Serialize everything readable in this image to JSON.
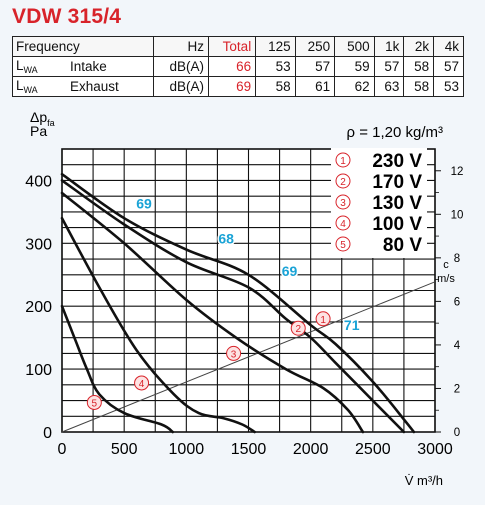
{
  "title": "VDW 315/4",
  "table": {
    "header": [
      "Frequency",
      "Hz",
      "Total",
      "125",
      "250",
      "500",
      "1k",
      "2k",
      "4k"
    ],
    "rows": [
      {
        "label": "L",
        "label_sub": "WA",
        "type": "Intake",
        "unit": "dB(A)",
        "total": "66",
        "values": [
          "53",
          "57",
          "59",
          "57",
          "58",
          "57"
        ]
      },
      {
        "label": "L",
        "label_sub": "WA",
        "type": "Exhaust",
        "unit": "dB(A)",
        "total": "69",
        "values": [
          "58",
          "61",
          "62",
          "63",
          "58",
          "53"
        ]
      }
    ]
  },
  "colors": {
    "accent_red": "#d8232a",
    "cyan": "#1aa3d6",
    "marker_fill": "#fde3e3"
  },
  "chart_data": {
    "type": "line",
    "ylabel": "Δp",
    "ylabel_sub": "fa",
    "yunit": "Pa",
    "xlabel": "V̇ m³/h",
    "density_label": "ρ = 1,20 kg/m³",
    "xlim": [
      0,
      3000
    ],
    "ylim": [
      0,
      450
    ],
    "x_ticks": [
      0,
      500,
      1000,
      1500,
      2000,
      2500,
      3000
    ],
    "y_ticks": [
      0,
      100,
      200,
      300,
      400
    ],
    "grid": true,
    "right_axis": {
      "label": "c",
      "unit": "m/s",
      "ticks": [
        0,
        2,
        4,
        6,
        8,
        10,
        12
      ],
      "lim": [
        0,
        13
      ]
    },
    "velocity_line": {
      "from": [
        0,
        0
      ],
      "to": [
        3000,
        6.9
      ]
    },
    "legend": [
      {
        "num": "1",
        "label": "230 V"
      },
      {
        "num": "2",
        "label": "170 V"
      },
      {
        "num": "3",
        "label": "130 V"
      },
      {
        "num": "4",
        "label": "100 V"
      },
      {
        "num": "5",
        "label": "80 V"
      }
    ],
    "series": [
      {
        "num": "1",
        "points": [
          [
            0,
            410
          ],
          [
            500,
            340
          ],
          [
            1000,
            290
          ],
          [
            1500,
            250
          ],
          [
            2000,
            170
          ],
          [
            2200,
            140
          ],
          [
            2500,
            80
          ],
          [
            2750,
            20
          ],
          [
            2830,
            0
          ]
        ]
      },
      {
        "num": "2",
        "points": [
          [
            0,
            400
          ],
          [
            500,
            330
          ],
          [
            1000,
            270
          ],
          [
            1500,
            230
          ],
          [
            1800,
            180
          ],
          [
            2000,
            150
          ],
          [
            2200,
            110
          ],
          [
            2500,
            50
          ],
          [
            2750,
            0
          ]
        ]
      },
      {
        "num": "3",
        "points": [
          [
            0,
            380
          ],
          [
            500,
            300
          ],
          [
            1000,
            210
          ],
          [
            1400,
            150
          ],
          [
            1800,
            100
          ],
          [
            2100,
            70
          ],
          [
            2300,
            35
          ],
          [
            2420,
            0
          ]
        ]
      },
      {
        "num": "4",
        "points": [
          [
            0,
            340
          ],
          [
            300,
            230
          ],
          [
            600,
            130
          ],
          [
            900,
            60
          ],
          [
            1100,
            30
          ],
          [
            1300,
            22
          ],
          [
            1450,
            12
          ],
          [
            1550,
            0
          ]
        ]
      },
      {
        "num": "5",
        "points": [
          [
            0,
            200
          ],
          [
            100,
            150
          ],
          [
            200,
            100
          ],
          [
            300,
            60
          ],
          [
            500,
            30
          ],
          [
            800,
            12
          ],
          [
            890,
            0
          ]
        ]
      }
    ],
    "series_markers": [
      {
        "num": "1",
        "x": 2100,
        "y": 180
      },
      {
        "num": "2",
        "x": 1900,
        "y": 165
      },
      {
        "num": "3",
        "x": 1380,
        "y": 125
      },
      {
        "num": "4",
        "x": 640,
        "y": 78
      },
      {
        "num": "5",
        "x": 260,
        "y": 47
      }
    ],
    "annotations": [
      {
        "text": "69",
        "x": 660,
        "y": 355
      },
      {
        "text": "68",
        "x": 1320,
        "y": 300
      },
      {
        "text": "69",
        "x": 1830,
        "y": 248
      },
      {
        "text": "71",
        "x": 2330,
        "y": 162
      }
    ]
  }
}
